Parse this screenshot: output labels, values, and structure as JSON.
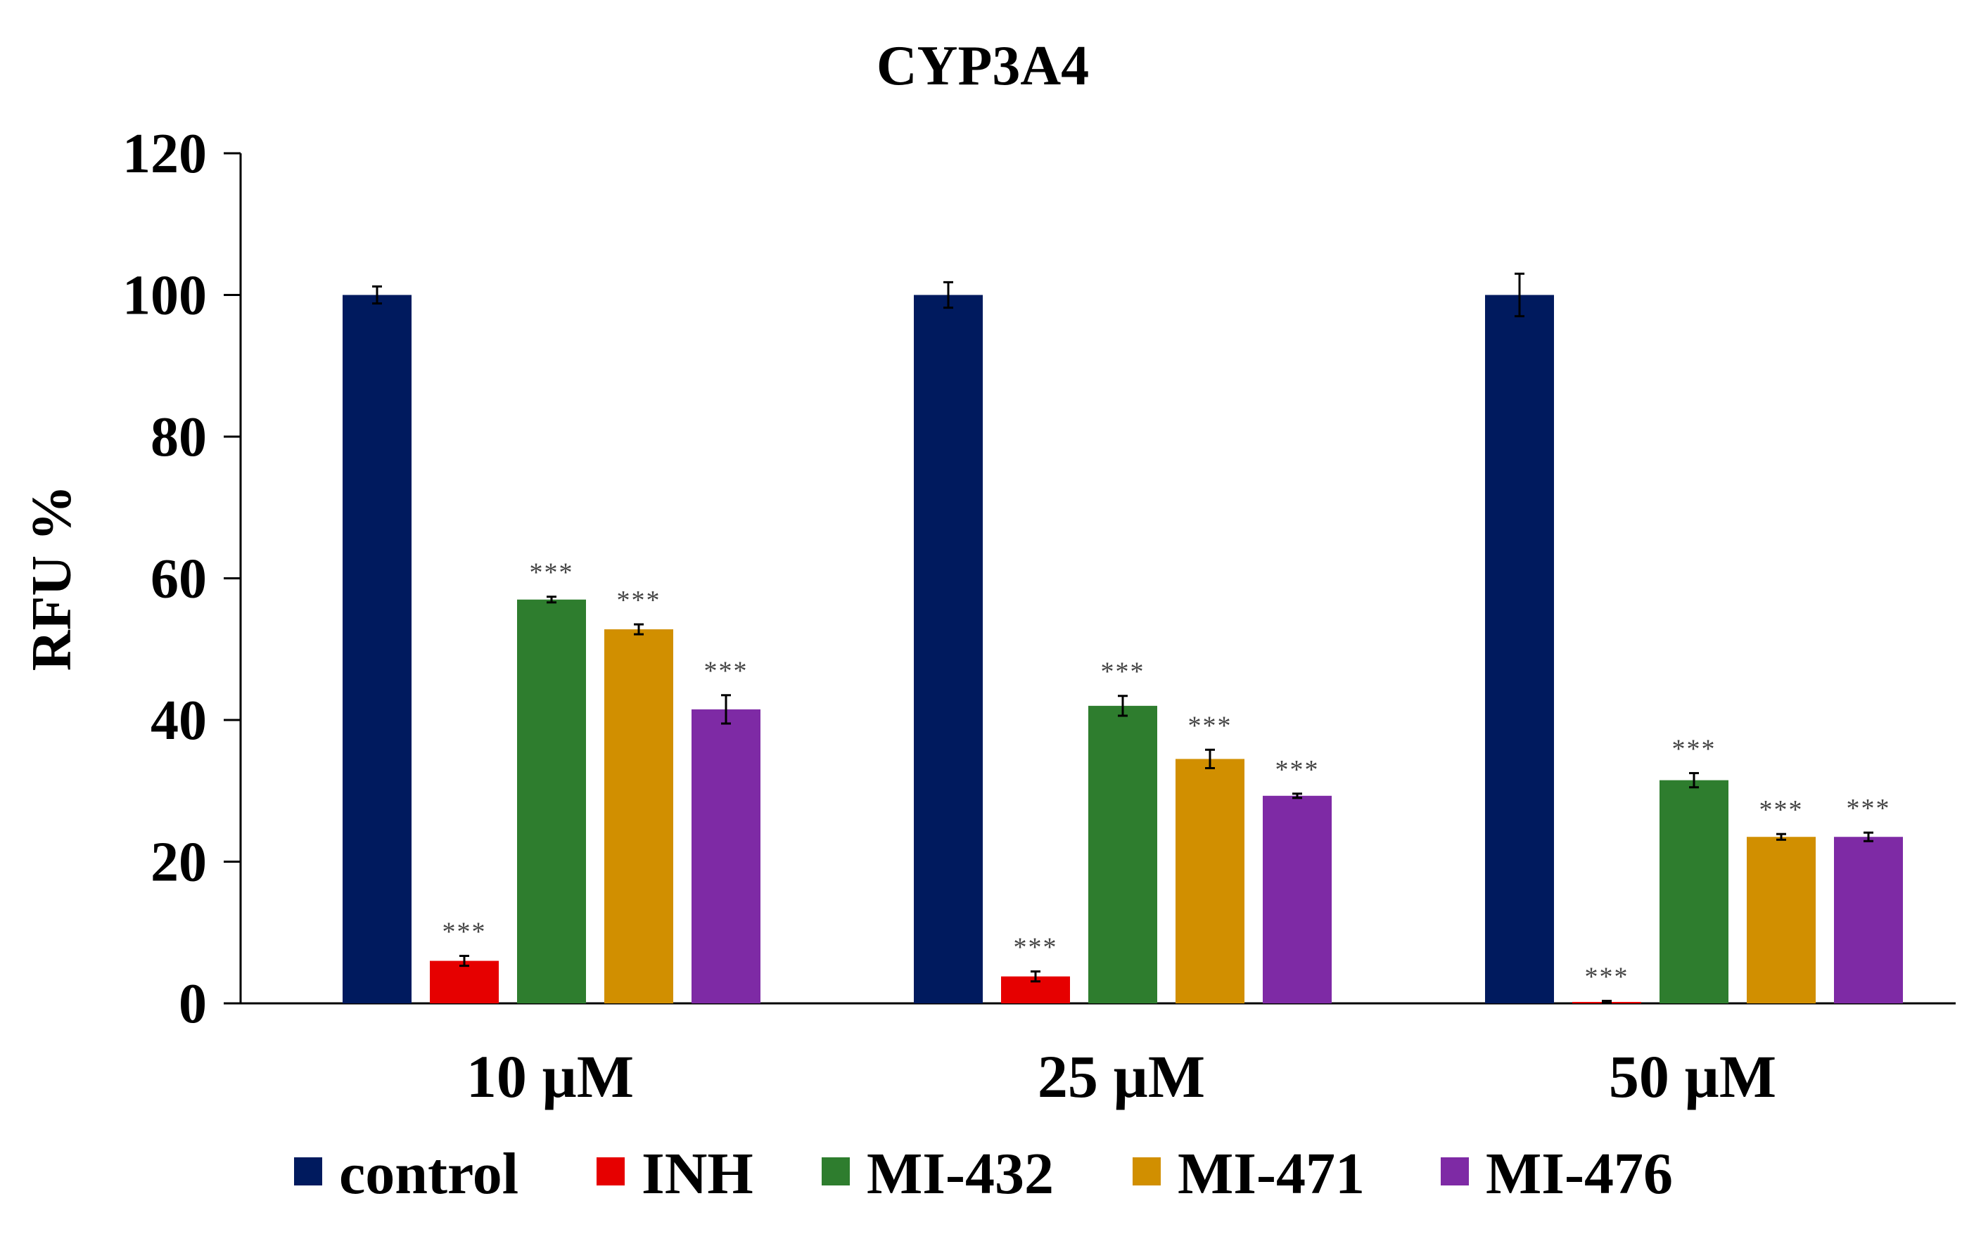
{
  "chart_data": {
    "type": "bar",
    "title": "CYP3A4",
    "ylabel": "RFU %",
    "xlabel": "",
    "ylim": [
      0,
      120
    ],
    "yticks": [
      0,
      20,
      40,
      60,
      80,
      100,
      120
    ],
    "categories": [
      "10 µM",
      "25 µM",
      "50 µM"
    ],
    "significance_marker": "***",
    "legend_position": "bottom",
    "series": [
      {
        "name": "control",
        "color": "#001a5e",
        "values": [
          100,
          100,
          100
        ],
        "errors": [
          1.2,
          1.8,
          3.0
        ],
        "significance": [
          "",
          "",
          ""
        ]
      },
      {
        "name": "INH",
        "color": "#e60000",
        "values": [
          6,
          3.8,
          0.2
        ],
        "errors": [
          0.7,
          0.7,
          0.15
        ],
        "significance": [
          "***",
          "***",
          "***"
        ]
      },
      {
        "name": "MI-432",
        "color": "#2e7d2e",
        "values": [
          57,
          42,
          31.5
        ],
        "errors": [
          0.4,
          1.4,
          1.0
        ],
        "significance": [
          "***",
          "***",
          "***"
        ]
      },
      {
        "name": "MI-471",
        "color": "#d18f00",
        "values": [
          52.8,
          34.5,
          23.5
        ],
        "errors": [
          0.7,
          1.3,
          0.4
        ],
        "significance": [
          "***",
          "***",
          "***"
        ]
      },
      {
        "name": "MI-476",
        "color": "#7e2aa5",
        "values": [
          41.5,
          29.3,
          23.5
        ],
        "errors": [
          2.0,
          0.3,
          0.6
        ],
        "significance": [
          "***",
          "***",
          "***"
        ]
      }
    ]
  }
}
